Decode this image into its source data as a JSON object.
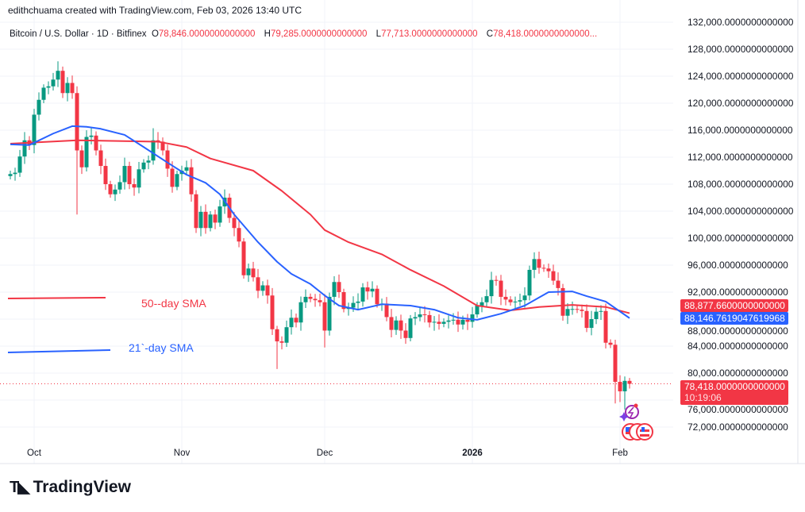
{
  "credit": "edithchuama created with TradingView.com, Feb 03, 2026 13:40 UTC",
  "legend": {
    "symbol": "Bitcoin / U.S. Dollar · 1D · Bitfinex",
    "o_key": "O",
    "o_val": "78,846.0000000000000",
    "h_key": "H",
    "h_val": "79,285.0000000000000",
    "l_key": "L",
    "l_val": "77,713.0000000000000",
    "c_key": "C",
    "c_val": "78,418.0000000000000..."
  },
  "colors": {
    "up": "#089981",
    "down": "#F23645",
    "sma50": "#F23645",
    "sma21": "#2962FF",
    "grid": "#F0F3FA"
  },
  "sma_labels": {
    "sma50": "50--day SMA",
    "sma21": "21`-day SMA"
  },
  "badges": {
    "sma50": "88,877.6600000000000",
    "sma21": "88,146.7619047619968",
    "last_price": "78,418.0000000000000",
    "countdown": "10:19:06"
  },
  "icons": {
    "event": "lightning-icon",
    "flags": "us-flag-icon"
  },
  "footer": {
    "logo_text": "TradingView"
  },
  "chart_data": {
    "type": "candlestick",
    "grid": true,
    "y_axis": {
      "position": "right",
      "ylim": [
        70000,
        132000
      ],
      "ticks": [
        "132,000.0000000000000",
        "128,000.0000000000000",
        "124,000.0000000000000",
        "120,000.0000000000000",
        "116,000.0000000000000",
        "112,000.0000000000000",
        "108,000.0000000000000",
        "104,000.0000000000000",
        "100,000.0000000000000",
        "96,000.0000000000000",
        "92,000.0000000000000",
        "88,000.0000000000000",
        "84,000.0000000000000",
        "80,000.0000000000000",
        "76,000.0000000000000",
        "72,000.0000000000000"
      ]
    },
    "x_axis": {
      "ticks": [
        {
          "label": "Oct",
          "date": "2025-10-01",
          "bold": false
        },
        {
          "label": "Nov",
          "date": "2025-11-01",
          "bold": false
        },
        {
          "label": "Dec",
          "date": "2025-12-01",
          "bold": false
        },
        {
          "label": "2026",
          "date": "2026-01-01",
          "bold": true
        },
        {
          "label": "Feb",
          "date": "2026-02-01",
          "bold": false
        }
      ]
    },
    "dates_first": "2025-09-26",
    "close": [
      109500,
      109700,
      112100,
      114500,
      113800,
      118300,
      120500,
      122300,
      122500,
      123500,
      124800,
      121500,
      123000,
      121500,
      113000,
      110500,
      115000,
      115200,
      113000,
      110700,
      108000,
      106500,
      107200,
      108300,
      110700,
      108000,
      107500,
      110200,
      111200,
      111500,
      114500,
      114300,
      113000,
      110300,
      107600,
      109500,
      110000,
      110500,
      106500,
      101500,
      103900,
      101500,
      103500,
      102300,
      104700,
      106000,
      103000,
      101500,
      99500,
      94500,
      95500,
      94200,
      92200,
      93000,
      91500,
      86500,
      84700,
      84500,
      86800,
      88200,
      87500,
      90500,
      91300,
      91000,
      90800,
      90500,
      86300,
      91300,
      93500,
      92000,
      89500,
      89700,
      90400,
      90600,
      92700,
      92100,
      92500,
      90200,
      90300,
      88300,
      86400,
      87800,
      86300,
      85200,
      88100,
      88300,
      88700,
      88600,
      87500,
      87600,
      87300,
      87600,
      87800,
      87900,
      87200,
      87900,
      87600,
      88700,
      90000,
      90500,
      91400,
      93800,
      93700,
      91300,
      90900,
      90500,
      90600,
      90800,
      91500,
      95300,
      96900,
      95600,
      95500,
      95100,
      93700,
      92600,
      88500,
      89500,
      89500,
      89400,
      89200,
      86700,
      88000,
      89100,
      89200,
      84500,
      84200,
      78700,
      77300,
      78846,
      78418
    ],
    "wick_overrides": [
      {
        "date": "2025-10-06",
        "high": 126200
      },
      {
        "date": "2025-10-10",
        "high": 122500,
        "low": 103500
      },
      {
        "date": "2025-10-26",
        "high": 116300
      },
      {
        "date": "2025-11-21",
        "low": 80600
      },
      {
        "date": "2025-12-01",
        "low": 83800
      },
      {
        "date": "2026-01-14",
        "high": 97900
      },
      {
        "date": "2026-01-31",
        "low": 75500
      },
      {
        "date": "2026-02-01",
        "low": 75700
      },
      {
        "date": "2026-02-02",
        "high": 79500,
        "low": 74600
      },
      {
        "date": "2026-02-03",
        "open": 78846,
        "high": 79285,
        "low": 77713
      }
    ],
    "series": [
      {
        "name": "50--day SMA",
        "points": [
          [
            "2025-09-26",
            114000
          ],
          [
            "2025-10-10",
            114500
          ],
          [
            "2025-10-27",
            114300
          ],
          [
            "2025-11-02",
            113500
          ],
          [
            "2025-11-07",
            111800
          ],
          [
            "2025-11-16",
            110000
          ],
          [
            "2025-11-22",
            107000
          ],
          [
            "2025-11-28",
            103500
          ],
          [
            "2025-12-01",
            101200
          ],
          [
            "2025-12-06",
            99400
          ],
          [
            "2025-12-13",
            97600
          ],
          [
            "2025-12-19",
            95300
          ],
          [
            "2025-12-26",
            92900
          ],
          [
            "2026-01-02",
            90000
          ],
          [
            "2026-01-09",
            89300
          ],
          [
            "2026-01-15",
            89800
          ],
          [
            "2026-01-22",
            90100
          ],
          [
            "2026-01-29",
            89800
          ],
          [
            "2026-02-03",
            88878
          ]
        ]
      },
      {
        "name": "21`-day SMA",
        "points": [
          [
            "2025-09-26",
            113900
          ],
          [
            "2025-09-30",
            113800
          ],
          [
            "2025-10-05",
            115500
          ],
          [
            "2025-10-09",
            116600
          ],
          [
            "2025-10-12",
            116500
          ],
          [
            "2025-10-15",
            116200
          ],
          [
            "2025-10-20",
            115300
          ],
          [
            "2025-10-24",
            113500
          ],
          [
            "2025-10-29",
            111200
          ],
          [
            "2025-11-02",
            109400
          ],
          [
            "2025-11-06",
            108200
          ],
          [
            "2025-11-09",
            106500
          ],
          [
            "2025-11-12",
            103500
          ],
          [
            "2025-11-17",
            99400
          ],
          [
            "2025-11-21",
            96500
          ],
          [
            "2025-11-24",
            94700
          ],
          [
            "2025-11-28",
            93200
          ],
          [
            "2025-12-01",
            91500
          ],
          [
            "2025-12-04",
            90000
          ],
          [
            "2025-12-08",
            89400
          ],
          [
            "2025-12-13",
            90200
          ],
          [
            "2025-12-19",
            90000
          ],
          [
            "2025-12-24",
            89400
          ],
          [
            "2025-12-29",
            88200
          ],
          [
            "2026-01-02",
            87900
          ],
          [
            "2026-01-07",
            88800
          ],
          [
            "2026-01-12",
            90000
          ],
          [
            "2026-01-17",
            92000
          ],
          [
            "2026-01-22",
            92100
          ],
          [
            "2026-01-25",
            91400
          ],
          [
            "2026-01-29",
            90600
          ],
          [
            "2026-02-03",
            88147
          ]
        ]
      }
    ]
  }
}
